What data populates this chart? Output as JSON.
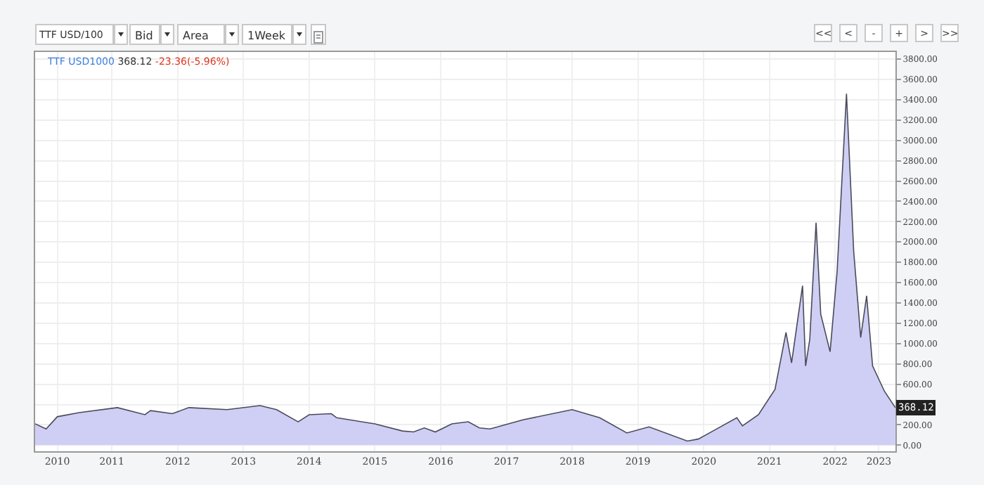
{
  "chart_data": {
    "type": "area",
    "title": "TTF USD1000",
    "annotations": [
      "TTF USD/100",
      "Bid",
      "Area",
      "1Week",
      "<<",
      "<",
      "-",
      "+",
      ">",
      ">>",
      "368.12",
      "-23.36(-5.96%)",
      {
        "text": "368.12",
        "x": "2023-06-01",
        "y": 368.12
      }
    ],
    "x": [
      "2010-05",
      "2010-07",
      "2010-09",
      "2011-01",
      "2011-08",
      "2012-01",
      "2012-02",
      "2012-06",
      "2012-09",
      "2013-04",
      "2013-10",
      "2014-01",
      "2014-05",
      "2014-07",
      "2014-11",
      "2014-12",
      "2015-07",
      "2015-12",
      "2016-02",
      "2016-04",
      "2016-06",
      "2016-09",
      "2016-12",
      "2017-02",
      "2017-04",
      "2017-10",
      "2018-07",
      "2018-12",
      "2019-05",
      "2019-09",
      "2020-04",
      "2020-06",
      "2020-09",
      "2021-01",
      "2021-02",
      "2021-05",
      "2021-08",
      "2021-10",
      "2021-11",
      "2022-01-01",
      "2022-01-18",
      "2022-02-10",
      "2022-03-17",
      "2022-04-12",
      "2022-06-03",
      "2022-07-12",
      "2022-09-02",
      "2022-10-12",
      "2022-11-20",
      "2022-12-23",
      "2023-01-25",
      "2023-04-01",
      "2023-06-01"
    ],
    "series": [
      {
        "color": "#cfcff5",
        "values": [
          210,
          160,
          280,
          320,
          370,
          300,
          340,
          310,
          370,
          350,
          390,
          350,
          230,
          300,
          310,
          270,
          210,
          140,
          130,
          170,
          130,
          210,
          230,
          170,
          160,
          250,
          350,
          270,
          120,
          180,
          40,
          60,
          150,
          270,
          190,
          300,
          550,
          1110,
          810,
          1570,
          780,
          1040,
          2190,
          1290,
          920,
          1710,
          3460,
          1910,
          1060,
          1470,
          780,
          530,
          368.12
        ]
      }
    ],
    "xlim": [
      "2010-05-01",
      "2023-06-01"
    ],
    "xticks": [
      {
        "value": "2010-09-01",
        "label": "2010"
      },
      {
        "value": "2011-07-01",
        "label": "2011"
      },
      {
        "value": "2012-07-01",
        "label": "2012"
      },
      {
        "value": "2013-07-01",
        "label": "2013"
      },
      {
        "value": "2014-07-01",
        "label": "2014"
      },
      {
        "value": "2015-07-01",
        "label": "2015"
      },
      {
        "value": "2016-07-01",
        "label": "2016"
      },
      {
        "value": "2017-07-01",
        "label": "2017"
      },
      {
        "value": "2018-07-01",
        "label": "2018"
      },
      {
        "value": "2019-07-01",
        "label": "2019"
      },
      {
        "value": "2020-07-01",
        "label": "2020"
      },
      {
        "value": "2021-07-01",
        "label": "2021"
      },
      {
        "value": "2022-07-01",
        "label": "2022"
      },
      {
        "value": "2023-03-01",
        "label": "2023"
      }
    ],
    "ylim": [
      -60,
      3870
    ],
    "yticks": [
      {
        "value": 0,
        "label": "0.00"
      },
      {
        "value": 200,
        "label": "200.00"
      },
      {
        "value": 400,
        "label": null
      },
      {
        "value": 600,
        "label": "600.00"
      },
      {
        "value": 800,
        "label": "800.00"
      },
      {
        "value": 1000,
        "label": "1000.00"
      },
      {
        "value": 1200,
        "label": "1200.00"
      },
      {
        "value": 1400,
        "label": "1400.00"
      },
      {
        "value": 1600,
        "label": "1600.00"
      },
      {
        "value": 1800,
        "label": "1800.00"
      },
      {
        "value": 2000,
        "label": "2000.00"
      },
      {
        "value": 2200,
        "label": "2200.00"
      },
      {
        "value": 2400,
        "label": "2400.00"
      },
      {
        "value": 2600,
        "label": "2600.00"
      },
      {
        "value": 2800,
        "label": "2800.00"
      },
      {
        "value": 3000,
        "label": "3000.00"
      },
      {
        "value": 3200,
        "label": "3200.00"
      },
      {
        "value": 3400,
        "label": "3400.00"
      },
      {
        "value": 3600,
        "label": "3600.00"
      },
      {
        "value": 3800,
        "label": "3800.00"
      }
    ],
    "grid": true
  }
}
